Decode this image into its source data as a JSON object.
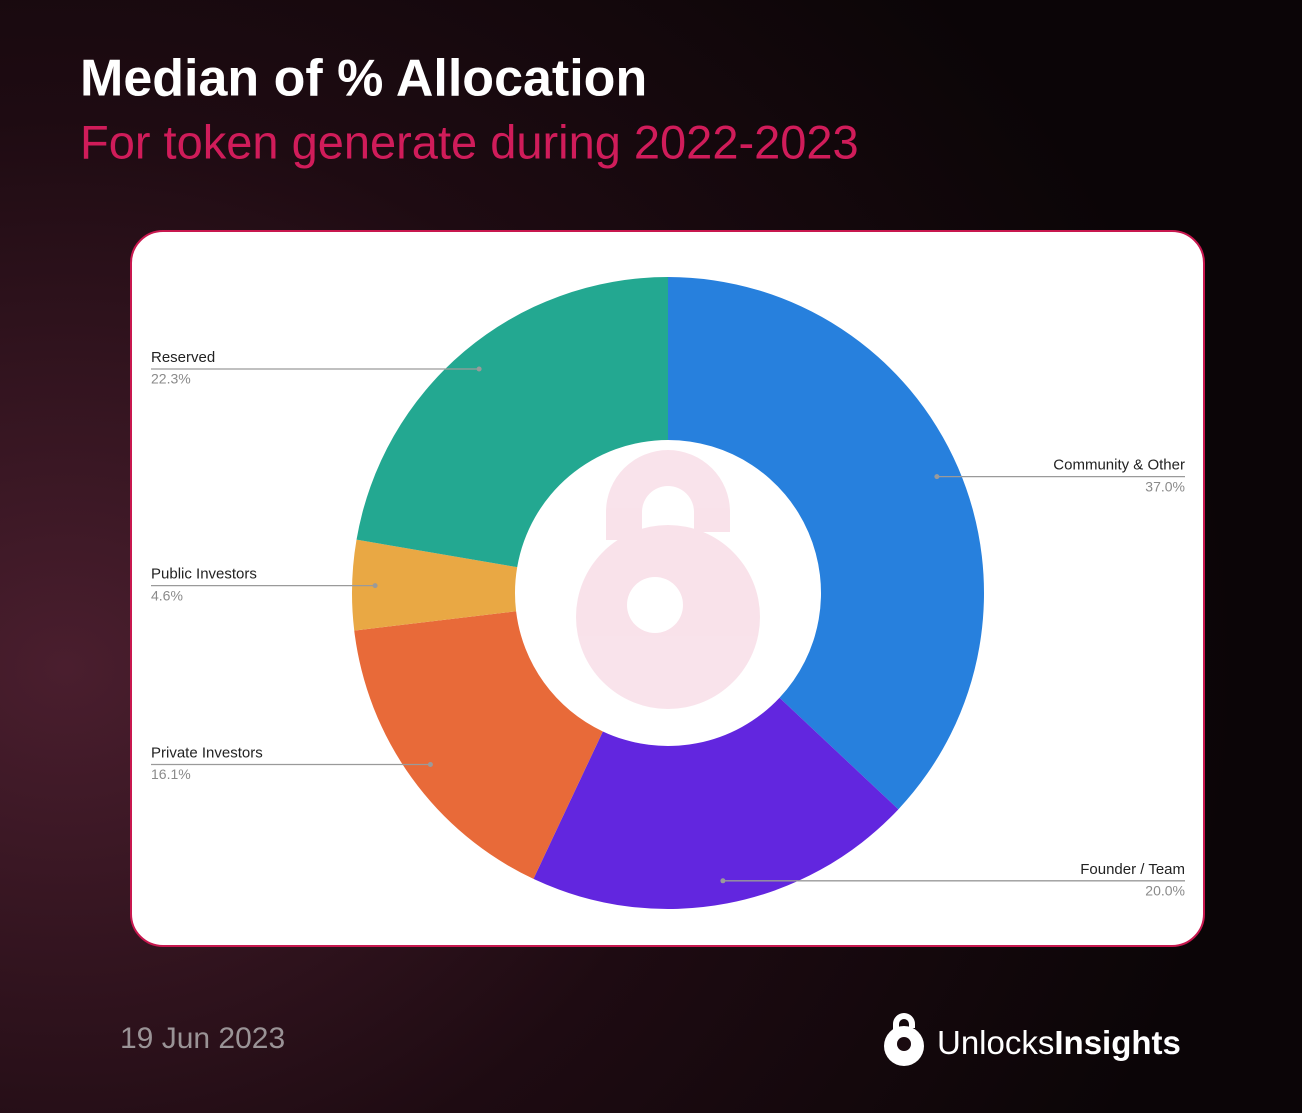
{
  "chart_data": {
    "type": "pie",
    "title": "Median of % Allocation",
    "subtitle": "For token generate during 2022-2023",
    "categories": [
      "Community & Other",
      "Founder / Team",
      "Private Investors",
      "Public Investors",
      "Reserved"
    ],
    "values": [
      37.0,
      20.0,
      16.1,
      4.6,
      22.3
    ],
    "value_labels": [
      "37.0%",
      "20.0%",
      "16.1%",
      "4.6%",
      "22.3%"
    ],
    "colors": [
      "#2780dd",
      "#6226df",
      "#e86a39",
      "#e9a844",
      "#23a891"
    ]
  },
  "footer": {
    "date": "19 Jun 2023",
    "brand_light": "Unlocks",
    "brand_bold": "Insights"
  }
}
